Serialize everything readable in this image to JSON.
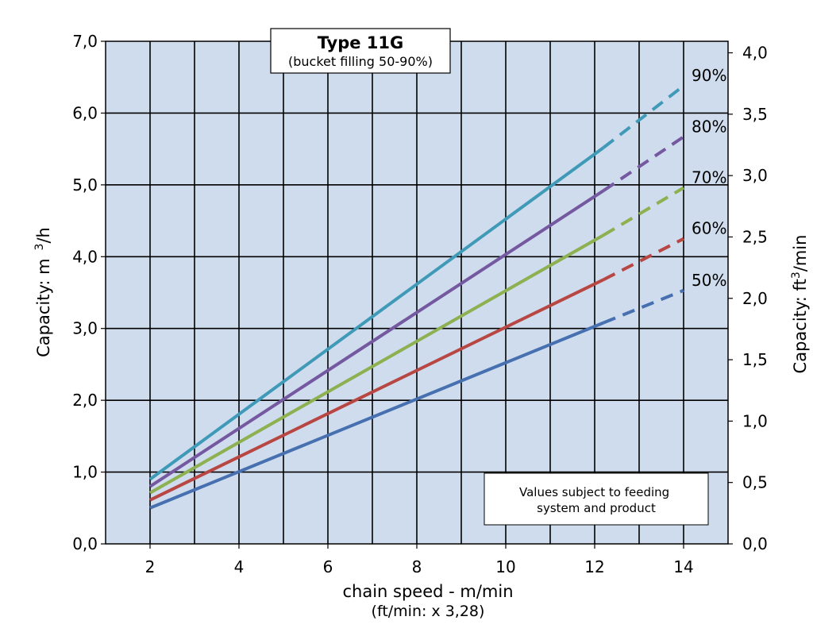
{
  "chart_data": {
    "type": "line",
    "title": "Type 11G",
    "subtitle": "(bucket filling 50-90%)",
    "xlabel": "chain speed - m/min",
    "xlabel_sub": "(ft/min: x 3,28)",
    "ylabel": "Capacity:  m",
    "ylabel_sup": "3",
    "ylabel_suffix": "/h",
    "ylabel_right": "Capacity:  ft",
    "ylabel_right_sup": "3",
    "ylabel_right_suffix": "/min",
    "xlim": [
      1,
      15
    ],
    "ylim": [
      0,
      7
    ],
    "ylim_right": [
      0,
      4.0939
    ],
    "x_ticks": [
      2,
      4,
      6,
      8,
      10,
      12,
      14
    ],
    "x_tick_labels": [
      "2",
      "4",
      "6",
      "8",
      "10",
      "12",
      "14"
    ],
    "y_ticks": [
      0,
      1,
      2,
      3,
      4,
      5,
      6,
      7
    ],
    "y_tick_labels": [
      "0,0",
      "1,0",
      "2,0",
      "3,0",
      "4,0",
      "5,0",
      "6,0",
      "7,0"
    ],
    "y_right_ticks": [
      0,
      0.5,
      1.0,
      1.5,
      2.0,
      2.5,
      3.0,
      3.5,
      4.0
    ],
    "y_right_tick_labels": [
      "0,0",
      "0,5",
      "1,0",
      "1,5",
      "2,0",
      "2,5",
      "3,0",
      "3,5",
      "4,0"
    ],
    "grid": true,
    "plot_background": "#cfdced",
    "series": [
      {
        "name": "50%",
        "color": "#4670b0",
        "solid": [
          [
            2,
            0.5
          ],
          [
            12.2,
            3.08
          ]
        ],
        "dashed": [
          [
            12.2,
            3.08
          ],
          [
            14,
            3.53
          ]
        ]
      },
      {
        "name": "60%",
        "color": "#b84642",
        "solid": [
          [
            2,
            0.61
          ],
          [
            12.2,
            3.68
          ]
        ],
        "dashed": [
          [
            12.2,
            3.68
          ],
          [
            14,
            4.25
          ]
        ]
      },
      {
        "name": "70%",
        "color": "#8db050",
        "solid": [
          [
            2,
            0.71
          ],
          [
            12.2,
            4.3
          ]
        ],
        "dashed": [
          [
            12.2,
            4.3
          ],
          [
            14,
            4.96
          ]
        ]
      },
      {
        "name": "80%",
        "color": "#7559a0",
        "solid": [
          [
            2,
            0.8
          ],
          [
            12.2,
            4.92
          ]
        ],
        "dashed": [
          [
            12.2,
            4.92
          ],
          [
            14,
            5.67
          ]
        ]
      },
      {
        "name": "90%",
        "color": "#3f9ab8",
        "solid": [
          [
            2,
            0.9
          ],
          [
            12.2,
            5.52
          ]
        ],
        "dashed": [
          [
            12.2,
            5.52
          ],
          [
            14,
            6.38
          ]
        ]
      }
    ],
    "series_label_positions": "right of line ends",
    "note": "Values subject to feeding system and product"
  }
}
